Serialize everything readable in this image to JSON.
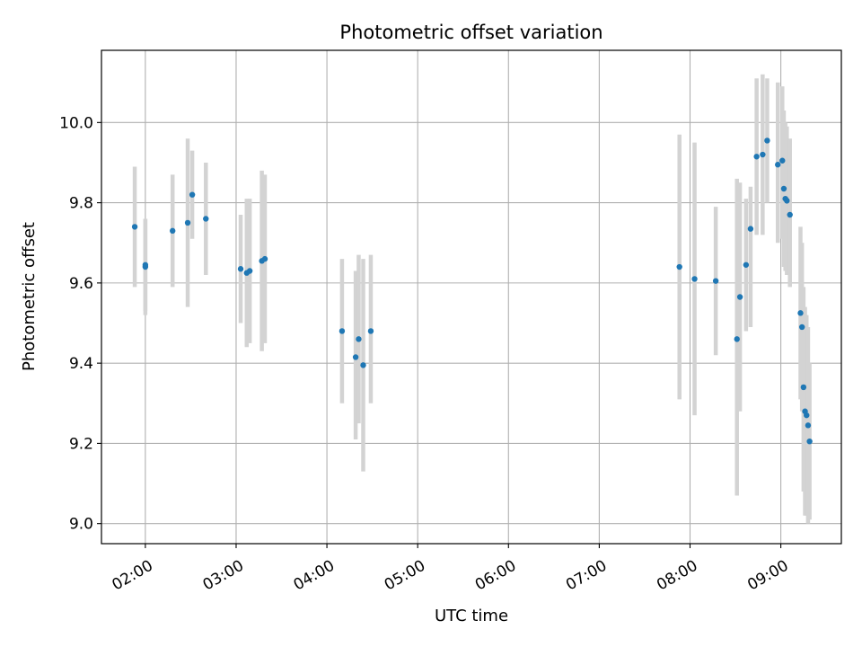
{
  "chart_data": {
    "type": "scatter",
    "title": "Photometric offset variation",
    "xlabel": "UTC time",
    "ylabel": "Photometric offset",
    "x_unit": "UTC time (HH:MM)",
    "xlim": [
      "01:31",
      "09:40"
    ],
    "ylim": [
      8.95,
      10.18
    ],
    "x_ticks": [
      "02:00",
      "03:00",
      "04:00",
      "05:00",
      "06:00",
      "07:00",
      "08:00",
      "09:00"
    ],
    "y_ticks": [
      "9.0",
      "9.2",
      "9.4",
      "9.6",
      "9.8",
      "10.0"
    ],
    "grid": true,
    "colors": {
      "points": "#1f77b4",
      "error_bars": "#d3d3d3",
      "grid": "#b0b0b0"
    },
    "series": [
      {
        "points": [
          {
            "x": "01:53",
            "y": 9.74,
            "err_low": 9.59,
            "err_high": 9.89
          },
          {
            "x": "02:00",
            "y": 9.64,
            "err_low": 9.52,
            "err_high": 9.76
          },
          {
            "x": "02:00",
            "y": 9.645,
            "err_low": 9.53,
            "err_high": 9.76
          },
          {
            "x": "02:18",
            "y": 9.73,
            "err_low": 9.59,
            "err_high": 9.87
          },
          {
            "x": "02:28",
            "y": 9.75,
            "err_low": 9.54,
            "err_high": 9.96
          },
          {
            "x": "02:31",
            "y": 9.82,
            "err_low": 9.71,
            "err_high": 9.93
          },
          {
            "x": "02:40",
            "y": 9.76,
            "err_low": 9.62,
            "err_high": 9.9
          },
          {
            "x": "03:03",
            "y": 9.635,
            "err_low": 9.5,
            "err_high": 9.77
          },
          {
            "x": "03:07",
            "y": 9.625,
            "err_low": 9.44,
            "err_high": 9.81
          },
          {
            "x": "03:09",
            "y": 9.63,
            "err_low": 9.45,
            "err_high": 9.81
          },
          {
            "x": "03:17",
            "y": 9.655,
            "err_low": 9.43,
            "err_high": 9.88
          },
          {
            "x": "03:19",
            "y": 9.66,
            "err_low": 9.45,
            "err_high": 9.87
          },
          {
            "x": "04:10",
            "y": 9.48,
            "err_low": 9.3,
            "err_high": 9.66
          },
          {
            "x": "04:19",
            "y": 9.415,
            "err_low": 9.21,
            "err_high": 9.63
          },
          {
            "x": "04:21",
            "y": 9.46,
            "err_low": 9.25,
            "err_high": 9.67
          },
          {
            "x": "04:24",
            "y": 9.395,
            "err_low": 9.13,
            "err_high": 9.66
          },
          {
            "x": "04:29",
            "y": 9.48,
            "err_low": 9.3,
            "err_high": 9.67
          },
          {
            "x": "07:53",
            "y": 9.64,
            "err_low": 9.31,
            "err_high": 9.97
          },
          {
            "x": "08:03",
            "y": 9.61,
            "err_low": 9.27,
            "err_high": 9.95
          },
          {
            "x": "08:17",
            "y": 9.605,
            "err_low": 9.42,
            "err_high": 9.79
          },
          {
            "x": "08:31",
            "y": 9.46,
            "err_low": 9.07,
            "err_high": 9.86
          },
          {
            "x": "08:33",
            "y": 9.565,
            "err_low": 9.28,
            "err_high": 9.85
          },
          {
            "x": "08:37",
            "y": 9.645,
            "err_low": 9.48,
            "err_high": 9.81
          },
          {
            "x": "08:40",
            "y": 9.735,
            "err_low": 9.49,
            "err_high": 9.84
          },
          {
            "x": "08:44",
            "y": 9.915,
            "err_low": 9.72,
            "err_high": 10.11
          },
          {
            "x": "08:48",
            "y": 9.92,
            "err_low": 9.72,
            "err_high": 10.12
          },
          {
            "x": "08:51",
            "y": 9.955,
            "err_low": 9.8,
            "err_high": 10.11
          },
          {
            "x": "08:58",
            "y": 9.895,
            "err_low": 9.7,
            "err_high": 10.1
          },
          {
            "x": "09:01",
            "y": 9.905,
            "err_low": 9.71,
            "err_high": 10.09
          },
          {
            "x": "09:02",
            "y": 9.835,
            "err_low": 9.64,
            "err_high": 10.03
          },
          {
            "x": "09:03",
            "y": 9.81,
            "err_low": 9.63,
            "err_high": 10.0
          },
          {
            "x": "09:04",
            "y": 9.805,
            "err_low": 9.62,
            "err_high": 9.99
          },
          {
            "x": "09:06",
            "y": 9.77,
            "err_low": 9.59,
            "err_high": 9.96
          },
          {
            "x": "09:13",
            "y": 9.525,
            "err_low": 9.31,
            "err_high": 9.74
          },
          {
            "x": "09:14",
            "y": 9.49,
            "err_low": 9.28,
            "err_high": 9.7
          },
          {
            "x": "09:15",
            "y": 9.34,
            "err_low": 9.08,
            "err_high": 9.59
          },
          {
            "x": "09:16",
            "y": 9.28,
            "err_low": 9.02,
            "err_high": 9.54
          },
          {
            "x": "09:17",
            "y": 9.27,
            "err_low": 9.02,
            "err_high": 9.52
          },
          {
            "x": "09:18",
            "y": 9.245,
            "err_low": 9.0,
            "err_high": 9.49
          },
          {
            "x": "09:19",
            "y": 9.205,
            "err_low": 9.01,
            "err_high": 9.4
          }
        ]
      }
    ]
  }
}
